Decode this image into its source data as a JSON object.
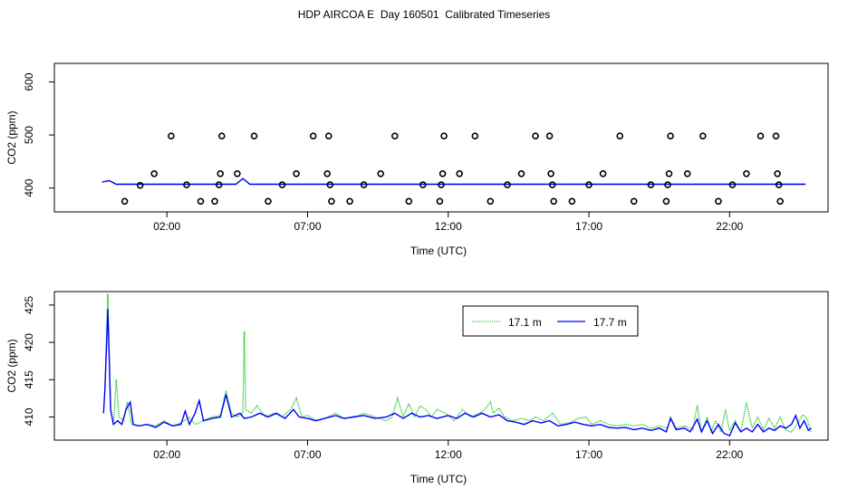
{
  "title": "HDP AIRCOA E  Day 160501  Calibrated Timeseries",
  "colors": {
    "s1": "#00c000",
    "s2": "#0000ff",
    "points": "#000000",
    "frame": "#000000"
  },
  "chart_data": [
    {
      "type": "line+scatter",
      "xlabel": "Time (UTC)",
      "ylabel": "CO2 (ppm)",
      "x_unit": "hours UTC",
      "xlim": [
        -2.0,
        25.5
      ],
      "ylim": [
        355,
        635
      ],
      "x_ticks": [
        {
          "x": 2,
          "label": "02:00"
        },
        {
          "x": 7,
          "label": "07:00"
        },
        {
          "x": 12,
          "label": "12:00"
        },
        {
          "x": 17,
          "label": "17:00"
        },
        {
          "x": 22,
          "label": "22:00"
        }
      ],
      "y_ticks": [
        {
          "y": 400,
          "label": "400"
        },
        {
          "y": 500,
          "label": "500"
        },
        {
          "y": 600,
          "label": "600"
        }
      ],
      "scatter": {
        "x": [
          0.5,
          1.05,
          1.55,
          2.15,
          2.7,
          3.2,
          3.7,
          3.85,
          3.9,
          3.95,
          4.5,
          5.1,
          5.6,
          6.1,
          6.6,
          7.2,
          7.7,
          7.75,
          7.8,
          7.85,
          8.5,
          9.0,
          9.6,
          10.1,
          10.6,
          11.1,
          11.7,
          11.75,
          11.8,
          11.85,
          12.4,
          12.95,
          13.5,
          14.1,
          14.6,
          15.1,
          15.6,
          15.65,
          15.7,
          15.75,
          16.4,
          17.0,
          17.5,
          18.1,
          18.6,
          19.2,
          19.75,
          19.8,
          19.85,
          19.9,
          20.5,
          21.05,
          21.6,
          22.1,
          22.6,
          23.1,
          23.65,
          23.7,
          23.75,
          23.8
        ],
        "y": [
          375,
          405,
          427,
          498,
          406,
          375,
          375,
          406,
          427,
          498,
          427,
          498,
          375,
          406,
          427,
          498,
          427,
          498,
          406,
          375,
          375,
          406,
          427,
          498,
          375,
          406,
          375,
          406,
          427,
          498,
          427,
          498,
          375,
          406,
          427,
          498,
          498,
          427,
          406,
          375,
          375,
          406,
          427,
          498,
          375,
          406,
          375,
          406,
          427,
          498,
          427,
          498,
          375,
          406,
          427,
          498,
          498,
          427,
          406,
          375
        ]
      },
      "series": [
        {
          "name": "17.1 m",
          "color": "#00c000",
          "key": "s1"
        },
        {
          "name": "17.7 m",
          "color": "#0000ff",
          "key": "s2"
        }
      ]
    },
    {
      "type": "line",
      "xlabel": "Time (UTC)",
      "ylabel": "CO2 (ppm)",
      "x_unit": "hours UTC",
      "xlim": [
        -2.0,
        25.5
      ],
      "ylim": [
        406.9,
        426.8
      ],
      "x_ticks": [
        {
          "x": 2,
          "label": "02:00"
        },
        {
          "x": 7,
          "label": "07:00"
        },
        {
          "x": 12,
          "label": "12:00"
        },
        {
          "x": 17,
          "label": "17:00"
        },
        {
          "x": 22,
          "label": "22:00"
        }
      ],
      "y_ticks": [
        {
          "y": 410,
          "label": "410"
        },
        {
          "y": 415,
          "label": "415"
        },
        {
          "y": 420,
          "label": "420"
        },
        {
          "y": 425,
          "label": "425"
        }
      ],
      "legend": {
        "placement": "top-right",
        "entries": [
          "17.1 m",
          "17.7 m"
        ]
      },
      "series": [
        {
          "name": "17.1 m",
          "color": "#00c000",
          "style": "dotted",
          "points": [
            [
              -0.2,
              414
            ],
            [
              -0.1,
              426.5
            ],
            [
              0.0,
              411
            ],
            [
              0.1,
              409
            ],
            [
              0.2,
              415
            ],
            [
              0.3,
              410
            ],
            [
              0.45,
              409.5
            ],
            [
              0.6,
              412
            ],
            [
              0.75,
              409
            ],
            [
              1.0,
              408.8
            ],
            [
              1.3,
              409
            ],
            [
              1.6,
              408.8
            ],
            [
              1.9,
              409.5
            ],
            [
              2.2,
              408.8
            ],
            [
              2.5,
              409.2
            ],
            [
              2.8,
              410
            ],
            [
              3.0,
              409
            ],
            [
              3.3,
              409.5
            ],
            [
              3.6,
              410
            ],
            [
              3.9,
              410.2
            ],
            [
              4.1,
              413.5
            ],
            [
              4.3,
              410.5
            ],
            [
              4.5,
              410
            ],
            [
              4.7,
              410.5
            ],
            [
              4.75,
              421.5
            ],
            [
              4.8,
              411
            ],
            [
              5.0,
              410.5
            ],
            [
              5.2,
              411.5
            ],
            [
              5.5,
              410
            ],
            [
              5.8,
              410.5
            ],
            [
              6.1,
              410
            ],
            [
              6.4,
              411
            ],
            [
              6.6,
              412.5
            ],
            [
              6.8,
              410
            ],
            [
              7.0,
              410.2
            ],
            [
              7.3,
              409.5
            ],
            [
              7.6,
              409.8
            ],
            [
              8.0,
              410.5
            ],
            [
              8.3,
              409.8
            ],
            [
              8.7,
              410
            ],
            [
              9.0,
              410.5
            ],
            [
              9.4,
              410
            ],
            [
              9.8,
              409.5
            ],
            [
              10.0,
              410
            ],
            [
              10.2,
              412.5
            ],
            [
              10.4,
              410
            ],
            [
              10.6,
              411.8
            ],
            [
              10.8,
              410
            ],
            [
              11.0,
              411.5
            ],
            [
              11.2,
              411
            ],
            [
              11.4,
              410
            ],
            [
              11.6,
              411
            ],
            [
              11.9,
              410.5
            ],
            [
              12.2,
              409.5
            ],
            [
              12.5,
              411
            ],
            [
              12.8,
              410
            ],
            [
              13.1,
              410.5
            ],
            [
              13.3,
              411
            ],
            [
              13.5,
              412
            ],
            [
              13.6,
              410.5
            ],
            [
              13.8,
              411.2
            ],
            [
              14.0,
              410
            ],
            [
              14.3,
              409.5
            ],
            [
              14.6,
              409.8
            ],
            [
              14.9,
              409.5
            ],
            [
              15.1,
              410
            ],
            [
              15.4,
              409.5
            ],
            [
              15.7,
              410.5
            ],
            [
              16.0,
              409
            ],
            [
              16.3,
              409.2
            ],
            [
              16.6,
              409.8
            ],
            [
              16.9,
              410
            ],
            [
              17.1,
              409
            ],
            [
              17.4,
              409.5
            ],
            [
              17.7,
              409
            ],
            [
              18.0,
              408.8
            ],
            [
              18.3,
              409
            ],
            [
              18.6,
              408.8
            ],
            [
              18.9,
              409
            ],
            [
              19.2,
              408.5
            ],
            [
              19.5,
              408.8
            ],
            [
              19.8,
              408.5
            ],
            [
              19.9,
              410
            ],
            [
              20.1,
              408.5
            ],
            [
              20.4,
              408.8
            ],
            [
              20.7,
              408.3
            ],
            [
              20.85,
              411.6
            ],
            [
              21.0,
              408
            ],
            [
              21.2,
              410
            ],
            [
              21.35,
              408
            ],
            [
              21.5,
              409.5
            ],
            [
              21.7,
              408
            ],
            [
              21.85,
              411
            ],
            [
              22.0,
              408.2
            ],
            [
              22.2,
              409.5
            ],
            [
              22.4,
              408
            ],
            [
              22.6,
              411.9
            ],
            [
              22.8,
              408.5
            ],
            [
              23.0,
              410
            ],
            [
              23.2,
              408.3
            ],
            [
              23.4,
              409.8
            ],
            [
              23.6,
              408.5
            ],
            [
              23.8,
              410
            ],
            [
              24.0,
              408.2
            ],
            [
              24.2,
              408
            ],
            [
              24.4,
              409
            ],
            [
              24.6,
              410.3
            ],
            [
              24.75,
              409.8
            ],
            [
              24.9,
              408
            ]
          ]
        },
        {
          "name": "17.7 m",
          "color": "#0000ff",
          "style": "solid",
          "points": [
            [
              -0.25,
              410.5
            ],
            [
              -0.2,
              414
            ],
            [
              -0.1,
              424.5
            ],
            [
              0.0,
              411
            ],
            [
              0.1,
              409
            ],
            [
              0.25,
              409.5
            ],
            [
              0.4,
              409
            ],
            [
              0.55,
              411
            ],
            [
              0.7,
              412
            ],
            [
              0.8,
              409
            ],
            [
              1.0,
              408.8
            ],
            [
              1.3,
              409
            ],
            [
              1.6,
              408.6
            ],
            [
              1.9,
              409.3
            ],
            [
              2.2,
              408.8
            ],
            [
              2.5,
              409
            ],
            [
              2.65,
              410.8
            ],
            [
              2.8,
              409
            ],
            [
              3.0,
              410.5
            ],
            [
              3.15,
              412.2
            ],
            [
              3.3,
              409.5
            ],
            [
              3.6,
              409.8
            ],
            [
              3.9,
              410
            ],
            [
              4.1,
              413
            ],
            [
              4.3,
              410
            ],
            [
              4.6,
              410.5
            ],
            [
              4.75,
              409.8
            ],
            [
              5.0,
              410
            ],
            [
              5.3,
              410.5
            ],
            [
              5.6,
              410
            ],
            [
              5.9,
              410.5
            ],
            [
              6.2,
              409.8
            ],
            [
              6.5,
              411
            ],
            [
              6.7,
              410
            ],
            [
              7.0,
              409.8
            ],
            [
              7.3,
              409.5
            ],
            [
              7.6,
              409.8
            ],
            [
              8.0,
              410.2
            ],
            [
              8.3,
              409.8
            ],
            [
              8.6,
              410
            ],
            [
              9.0,
              410.2
            ],
            [
              9.4,
              409.8
            ],
            [
              9.8,
              410
            ],
            [
              10.1,
              410.5
            ],
            [
              10.4,
              409.8
            ],
            [
              10.7,
              410.5
            ],
            [
              11.0,
              410
            ],
            [
              11.3,
              410.2
            ],
            [
              11.6,
              409.8
            ],
            [
              12.0,
              410.2
            ],
            [
              12.3,
              409.8
            ],
            [
              12.6,
              410.5
            ],
            [
              12.9,
              410
            ],
            [
              13.2,
              410.5
            ],
            [
              13.5,
              410
            ],
            [
              13.8,
              410.3
            ],
            [
              14.1,
              409.5
            ],
            [
              14.4,
              409.3
            ],
            [
              14.7,
              409
            ],
            [
              15.0,
              409.5
            ],
            [
              15.3,
              409.2
            ],
            [
              15.6,
              409.5
            ],
            [
              15.9,
              408.8
            ],
            [
              16.2,
              409
            ],
            [
              16.5,
              409.3
            ],
            [
              16.8,
              409
            ],
            [
              17.1,
              408.8
            ],
            [
              17.4,
              409
            ],
            [
              17.7,
              408.6
            ],
            [
              18.0,
              408.5
            ],
            [
              18.3,
              408.6
            ],
            [
              18.6,
              408.3
            ],
            [
              18.9,
              408.5
            ],
            [
              19.2,
              408.2
            ],
            [
              19.5,
              408.5
            ],
            [
              19.75,
              408
            ],
            [
              19.9,
              409.8
            ],
            [
              20.1,
              408.3
            ],
            [
              20.4,
              408.5
            ],
            [
              20.6,
              408
            ],
            [
              20.85,
              409.7
            ],
            [
              21.0,
              408
            ],
            [
              21.2,
              409.5
            ],
            [
              21.4,
              407.8
            ],
            [
              21.6,
              409
            ],
            [
              21.8,
              407.8
            ],
            [
              22.0,
              407.5
            ],
            [
              22.2,
              409.2
            ],
            [
              22.4,
              408
            ],
            [
              22.6,
              408.5
            ],
            [
              22.8,
              408
            ],
            [
              23.0,
              409
            ],
            [
              23.2,
              408
            ],
            [
              23.4,
              408.5
            ],
            [
              23.6,
              408.2
            ],
            [
              23.8,
              408.8
            ],
            [
              24.0,
              408.5
            ],
            [
              24.2,
              409
            ],
            [
              24.35,
              410.2
            ],
            [
              24.5,
              408.5
            ],
            [
              24.65,
              409.5
            ],
            [
              24.8,
              408.2
            ],
            [
              24.9,
              408.5
            ]
          ]
        }
      ]
    }
  ]
}
